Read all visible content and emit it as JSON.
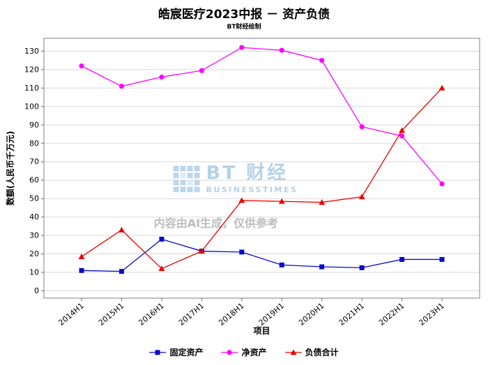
{
  "chart_data": {
    "type": "line",
    "title": "皓宸医疗2023中报 － 资产负债",
    "subtitle": "BT财经绘制",
    "xlabel": "项目",
    "ylabel": "数额(人民币千万元)",
    "categories": [
      "2014H1",
      "2015H1",
      "2016H1",
      "2017H1",
      "2018H1",
      "2019H1",
      "2020H1",
      "2021H1",
      "2022H1",
      "2023H1"
    ],
    "series": [
      {
        "name": "固定资产",
        "color": "#0a0ac8",
        "marker": "square",
        "values": [
          11,
          10.5,
          28,
          21.5,
          21,
          14,
          13,
          12.5,
          17,
          17
        ]
      },
      {
        "name": "净资产",
        "color": "#ff00ff",
        "marker": "circle",
        "values": [
          122,
          111,
          116,
          119.5,
          132,
          130.5,
          125,
          89,
          84,
          58
        ]
      },
      {
        "name": "负债合计",
        "color": "#ee0000",
        "marker": "triangle",
        "values": [
          18.5,
          33,
          12,
          21.5,
          49,
          48.5,
          48,
          51,
          87,
          110
        ]
      }
    ],
    "ylim": [
      0,
      130
    ],
    "ytick_step": 10,
    "grid": true,
    "legend_position": "bottom",
    "grid_color": "#d9d9d9",
    "border_color": "#808080",
    "watermark": {
      "logo_text": "BT 财经",
      "logo_subtext": "BUSINESSTIMES",
      "disclaimer": "内容由AI生成，仅供参考"
    }
  }
}
